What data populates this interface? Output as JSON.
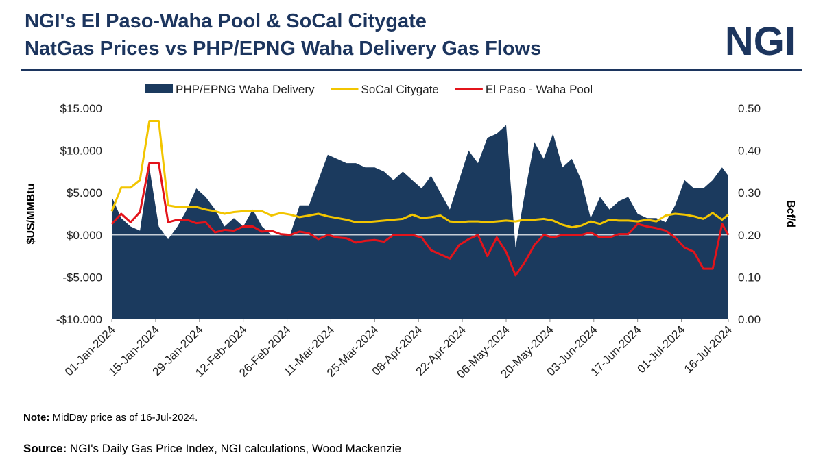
{
  "logo": "NGI",
  "footer": {
    "note_label": "Note:",
    "note": "MidDay price as of 16-Jul-2024.",
    "source_label": "Source:",
    "source": "NGI's Daily Gas Price Index, NGI calculations, Wood Mackenzie"
  },
  "chart_data": {
    "type": "line",
    "title": [
      "NGI's El Paso-Waha Pool & SoCal Citygate",
      "NatGas Prices vs PHP/EPNG Waha Delivery Gas Flows"
    ],
    "y_label": "$US/MMBtu",
    "y2_label": "Bcf/d",
    "x": [
      "2024-01-01",
      "2024-01-04",
      "2024-01-07",
      "2024-01-10",
      "2024-01-13",
      "2024-01-16",
      "2024-01-19",
      "2024-01-22",
      "2024-01-25",
      "2024-01-28",
      "2024-01-31",
      "2024-02-03",
      "2024-02-06",
      "2024-02-09",
      "2024-02-12",
      "2024-02-15",
      "2024-02-18",
      "2024-02-21",
      "2024-02-24",
      "2024-02-27",
      "2024-03-01",
      "2024-03-04",
      "2024-03-07",
      "2024-03-10",
      "2024-03-13",
      "2024-03-16",
      "2024-03-19",
      "2024-03-22",
      "2024-03-25",
      "2024-03-28",
      "2024-03-31",
      "2024-04-03",
      "2024-04-06",
      "2024-04-09",
      "2024-04-12",
      "2024-04-15",
      "2024-04-18",
      "2024-04-21",
      "2024-04-24",
      "2024-04-27",
      "2024-04-30",
      "2024-05-03",
      "2024-05-06",
      "2024-05-09",
      "2024-05-12",
      "2024-05-15",
      "2024-05-18",
      "2024-05-21",
      "2024-05-24",
      "2024-05-27",
      "2024-05-30",
      "2024-06-02",
      "2024-06-05",
      "2024-06-08",
      "2024-06-11",
      "2024-06-14",
      "2024-06-17",
      "2024-06-20",
      "2024-06-23",
      "2024-06-26",
      "2024-06-29",
      "2024-07-02",
      "2024-07-05",
      "2024-07-08",
      "2024-07-11",
      "2024-07-14",
      "2024-07-16"
    ],
    "xlim": [
      "2024-01-01",
      "2024-07-16"
    ],
    "xticks": [
      {
        "value": "2024-01-01",
        "label": "01-Jan-2024"
      },
      {
        "value": "2024-01-15",
        "label": "15-Jan-2024"
      },
      {
        "value": "2024-01-29",
        "label": "29-Jan-2024"
      },
      {
        "value": "2024-02-12",
        "label": "12-Feb-2024"
      },
      {
        "value": "2024-02-26",
        "label": "26-Feb-2024"
      },
      {
        "value": "2024-03-11",
        "label": "11-Mar-2024"
      },
      {
        "value": "2024-03-25",
        "label": "25-Mar-2024"
      },
      {
        "value": "2024-04-08",
        "label": "08-Apr-2024"
      },
      {
        "value": "2024-04-22",
        "label": "22-Apr-2024"
      },
      {
        "value": "2024-05-06",
        "label": "06-May-2024"
      },
      {
        "value": "2024-05-20",
        "label": "20-May-2024"
      },
      {
        "value": "2024-06-03",
        "label": "03-Jun-2024"
      },
      {
        "value": "2024-06-17",
        "label": "17-Jun-2024"
      },
      {
        "value": "2024-07-01",
        "label": "01-Jul-2024"
      },
      {
        "value": "2024-07-16",
        "label": "16-Jul-2024"
      }
    ],
    "ylim": [
      -10,
      15
    ],
    "yticks": [
      {
        "value": -10,
        "label": "-$10.000"
      },
      {
        "value": -5,
        "label": "-$5.000"
      },
      {
        "value": 0,
        "label": "$0.000"
      },
      {
        "value": 5,
        "label": "$5.000"
      },
      {
        "value": 10,
        "label": "$10.000"
      },
      {
        "value": 15,
        "label": "$15.000"
      }
    ],
    "y2lim": [
      0,
      0.5
    ],
    "y2ticks": [
      {
        "value": 0,
        "label": "0.00"
      },
      {
        "value": 0.1,
        "label": "0.10"
      },
      {
        "value": 0.2,
        "label": "0.20"
      },
      {
        "value": 0.3,
        "label": "0.30"
      },
      {
        "value": 0.4,
        "label": "0.40"
      },
      {
        "value": 0.5,
        "label": "0.50"
      }
    ],
    "legend": "top",
    "series": [
      {
        "name": "PHP/EPNG Waha Delivery",
        "kind": "area",
        "axis": "y2",
        "color": "#1b3a5e",
        "values": [
          0.29,
          0.24,
          0.22,
          0.21,
          0.36,
          0.22,
          0.19,
          0.22,
          0.26,
          0.31,
          0.29,
          0.26,
          0.22,
          0.24,
          0.22,
          0.26,
          0.22,
          0.2,
          0.2,
          0.2,
          0.27,
          0.27,
          0.33,
          0.39,
          0.38,
          0.37,
          0.37,
          0.36,
          0.36,
          0.35,
          0.33,
          0.35,
          0.33,
          0.31,
          0.34,
          0.3,
          0.26,
          0.33,
          0.4,
          0.37,
          0.43,
          0.44,
          0.46,
          0.17,
          0.3,
          0.42,
          0.38,
          0.44,
          0.36,
          0.38,
          0.33,
          0.24,
          0.29,
          0.26,
          0.28,
          0.29,
          0.25,
          0.24,
          0.24,
          0.23,
          0.27,
          0.33,
          0.31,
          0.31,
          0.33,
          0.36,
          0.34
        ]
      },
      {
        "name": "SoCal Citygate",
        "kind": "line",
        "color": "#f2c500",
        "values": [
          2.8,
          5.6,
          5.6,
          6.5,
          13.5,
          13.5,
          3.5,
          3.3,
          3.3,
          3.3,
          3.0,
          2.8,
          2.5,
          2.7,
          2.8,
          2.8,
          2.8,
          2.3,
          2.6,
          2.4,
          2.1,
          2.3,
          2.5,
          2.2,
          2.0,
          1.8,
          1.5,
          1.5,
          1.6,
          1.7,
          1.8,
          1.9,
          2.4,
          2.0,
          2.1,
          2.3,
          1.6,
          1.5,
          1.6,
          1.6,
          1.5,
          1.6,
          1.7,
          1.6,
          1.8,
          1.8,
          1.9,
          1.7,
          1.2,
          0.9,
          1.1,
          1.6,
          1.3,
          1.8,
          1.7,
          1.7,
          1.6,
          1.8,
          1.6,
          2.3,
          2.5,
          2.4,
          2.2,
          1.9,
          2.6,
          1.8,
          2.4
        ]
      },
      {
        "name": "El Paso - Waha Pool",
        "kind": "line",
        "color": "#e3141b",
        "values": [
          1.3,
          2.5,
          1.5,
          2.7,
          8.5,
          8.5,
          1.5,
          1.8,
          1.8,
          1.4,
          1.5,
          0.3,
          0.6,
          0.5,
          1.0,
          1.0,
          0.4,
          0.5,
          0.1,
          0.0,
          0.4,
          0.2,
          -0.5,
          0.0,
          -0.3,
          -0.4,
          -0.9,
          -0.7,
          -0.6,
          -0.8,
          0.0,
          0.0,
          0.0,
          -0.3,
          -1.8,
          -2.3,
          -2.8,
          -1.2,
          -0.5,
          0.0,
          -2.5,
          -0.3,
          -2.0,
          -4.8,
          -3.2,
          -1.2,
          0.0,
          -0.3,
          0.0,
          0.0,
          0.0,
          0.3,
          -0.3,
          -0.3,
          0.1,
          0.1,
          1.3,
          1.0,
          0.8,
          0.5,
          -0.3,
          -1.5,
          -2.0,
          -4.0,
          -4.0,
          1.3,
          0.0
        ]
      }
    ]
  }
}
